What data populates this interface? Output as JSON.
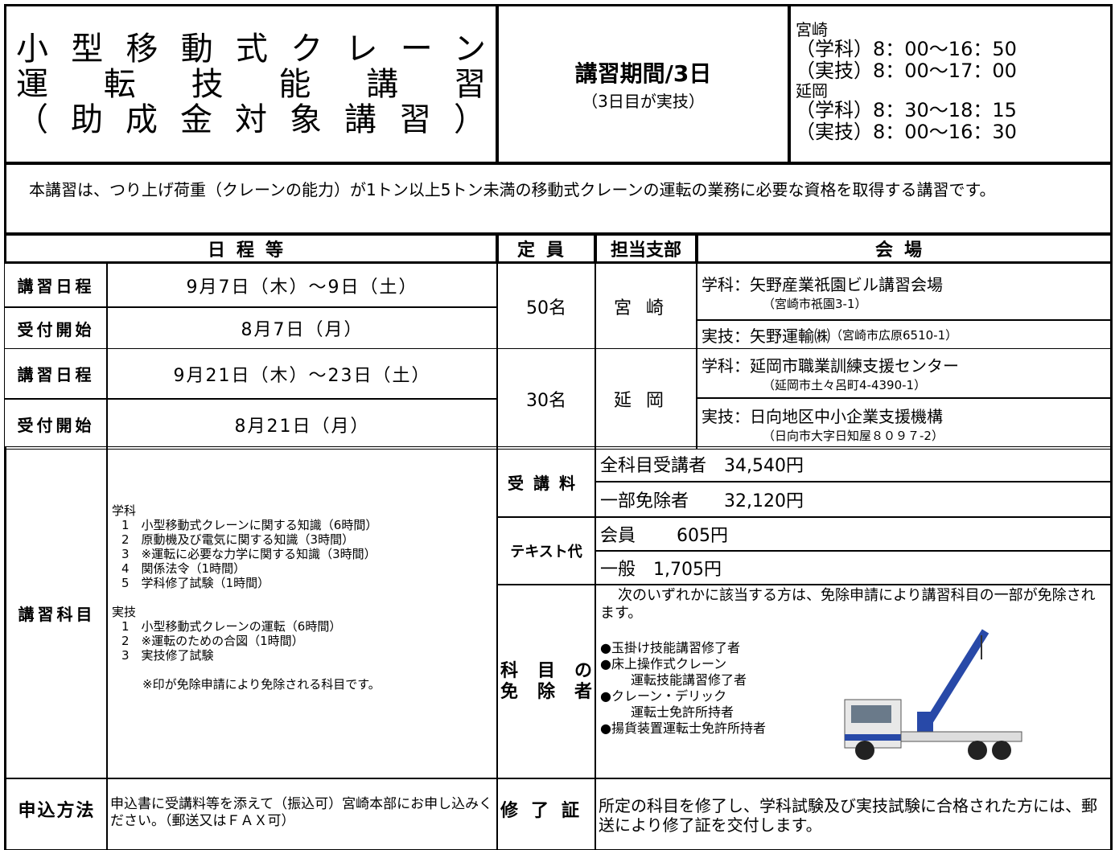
{
  "header": {
    "title": [
      "小型移動式クレーン",
      "運転技能講習",
      "（助成金対象講習）"
    ],
    "period": "講習期間/3日",
    "period_note": "（3日目が実技）",
    "times": [
      "宮崎",
      "（学科）8：00～16：50",
      "（実技）8：00～17：00",
      "延岡",
      "（学科）8：30～18：15",
      "（実技）8：00～16：30"
    ]
  },
  "description": "本講習は、つり上げ荷重（クレーンの能力）が1トン以上5トン未満の移動式クレーンの運転の業務に必要な資格を取得する講習です。",
  "table": {
    "headers": [
      "日程等",
      "定員",
      "担当支部",
      "会場"
    ],
    "sessions": [
      {
        "rows": [
          {
            "label": "講習日程",
            "date": "9月7日（木）～9日（土）"
          },
          {
            "label": "受付開始",
            "date": "8月7日（月）"
          }
        ],
        "capacity": "50名",
        "branch": "宮崎",
        "venue": [
          {
            "main": "学科：矢野産業祇園ビル講習会場",
            "sub": "（宮崎市祇園3-1）"
          },
          {
            "main": "実技：矢野運輸㈱",
            "sub": "（宮崎市広原6510-1）"
          }
        ]
      },
      {
        "rows": [
          {
            "label": "講習日程",
            "date": "9月21日（木）～23日（土）"
          },
          {
            "label": "受付開始",
            "date": "8月21日（月）"
          }
        ],
        "capacity": "30名",
        "branch": "延岡",
        "venue": [
          {
            "main": "学科：延岡市職業訓練支援センター",
            "sub": "（延岡市土々呂町4-4390-1）"
          },
          {
            "main": "実技：日向地区中小企業支援機構",
            "sub": "（日向市大字日知屋８０９７-2）"
          }
        ]
      }
    ]
  },
  "subjects": {
    "label": "講習科目",
    "groups": [
      {
        "title": "学科",
        "items": [
          "1　小型移動式クレーンに関する知識（6時間）",
          "2　原動機及び電気に関する知識（3時間）",
          "3　※運転に必要な力学に関する知識（3時間）",
          "4　関係法令（1時間）",
          "5　学科修了試験（1時間）"
        ]
      },
      {
        "title": "実技",
        "items": [
          "1　小型移動式クレーンの運転（6時間）",
          "2　※運転のための合図（1時間）",
          "3　実技修了試験"
        ]
      }
    ],
    "note": "※印が免除申請により免除される科目です。"
  },
  "fee": {
    "label": "受講料",
    "rows": [
      "全科目受講者　34,540円",
      "一部免除者　　32,120円"
    ]
  },
  "text_fee": {
    "label": "テキスト代",
    "rows": [
      "会員　　 605円",
      "一般　1,705円"
    ]
  },
  "exemption": {
    "label": [
      "科目の",
      "免除者"
    ],
    "intro": "次のいずれかに該当する方は、免除申請により講習科目の一部が免除されます。",
    "items": [
      [
        "●玉掛け技能講習修了者"
      ],
      [
        "●床上操作式クレーン",
        "運転技能講習修了者"
      ],
      [
        "●クレーン・デリック",
        "運転士免許所持者"
      ],
      [
        "●揚貨装置運転士免許所持者"
      ]
    ]
  },
  "application": {
    "label": "申込方法",
    "text": "申込書に受講料等を添えて（振込可）宮崎本部にお申し込みください。（郵送又はＦＡＸ可）"
  },
  "certificate": {
    "label": "修了証",
    "text": "所定の科目を修了し、学科試験及び実技試験に合格された方には、郵送により修了証を交付します。"
  }
}
